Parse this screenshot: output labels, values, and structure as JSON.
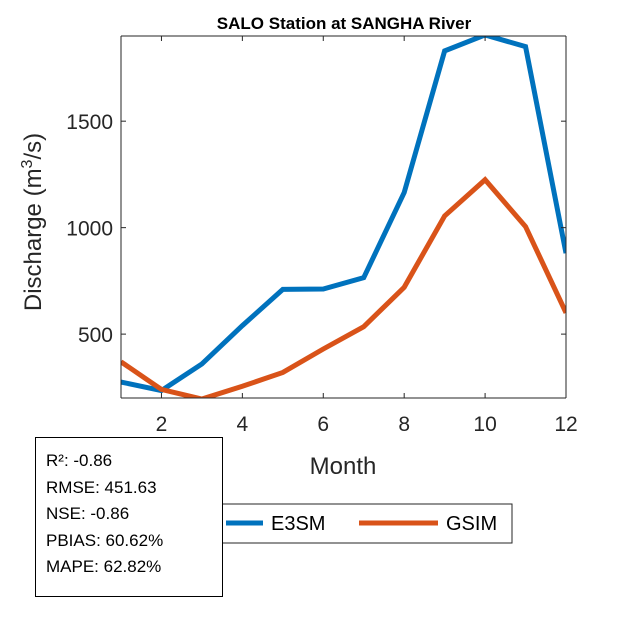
{
  "chart_data": {
    "type": "line",
    "title": "SALO  Station at  SANGHA  River",
    "xlabel": "Month",
    "ylabel": "Discharge (m",
    "ylabel_sup": "3",
    "ylabel_end": "/s)",
    "x": [
      1,
      2,
      3,
      4,
      5,
      6,
      7,
      8,
      9,
      10,
      11,
      12
    ],
    "xlim": [
      1,
      12
    ],
    "ylim": [
      200,
      1900
    ],
    "xticks": [
      2,
      4,
      6,
      8,
      10,
      12
    ],
    "yticks": [
      500,
      1000,
      1500
    ],
    "grid": false,
    "legend_position": "bottom-outside",
    "series": [
      {
        "name": "E3SM",
        "color": "#0072BD",
        "values": [
          275,
          235,
          360,
          540,
          710,
          712,
          765,
          1165,
          1830,
          1905,
          1850,
          880
        ]
      },
      {
        "name": "GSIM",
        "color": "#D95319",
        "values": [
          370,
          240,
          195,
          255,
          320,
          430,
          535,
          720,
          1055,
          1225,
          1005,
          600
        ]
      }
    ]
  },
  "stats": [
    {
      "label": "R²",
      "value": "-0.86"
    },
    {
      "label": "RMSE",
      "value": "451.63"
    },
    {
      "label": "NSE",
      "value": "-0.86"
    },
    {
      "label": "PBIAS",
      "value": "60.62%"
    },
    {
      "label": "MAPE",
      "value": "62.82%"
    }
  ]
}
